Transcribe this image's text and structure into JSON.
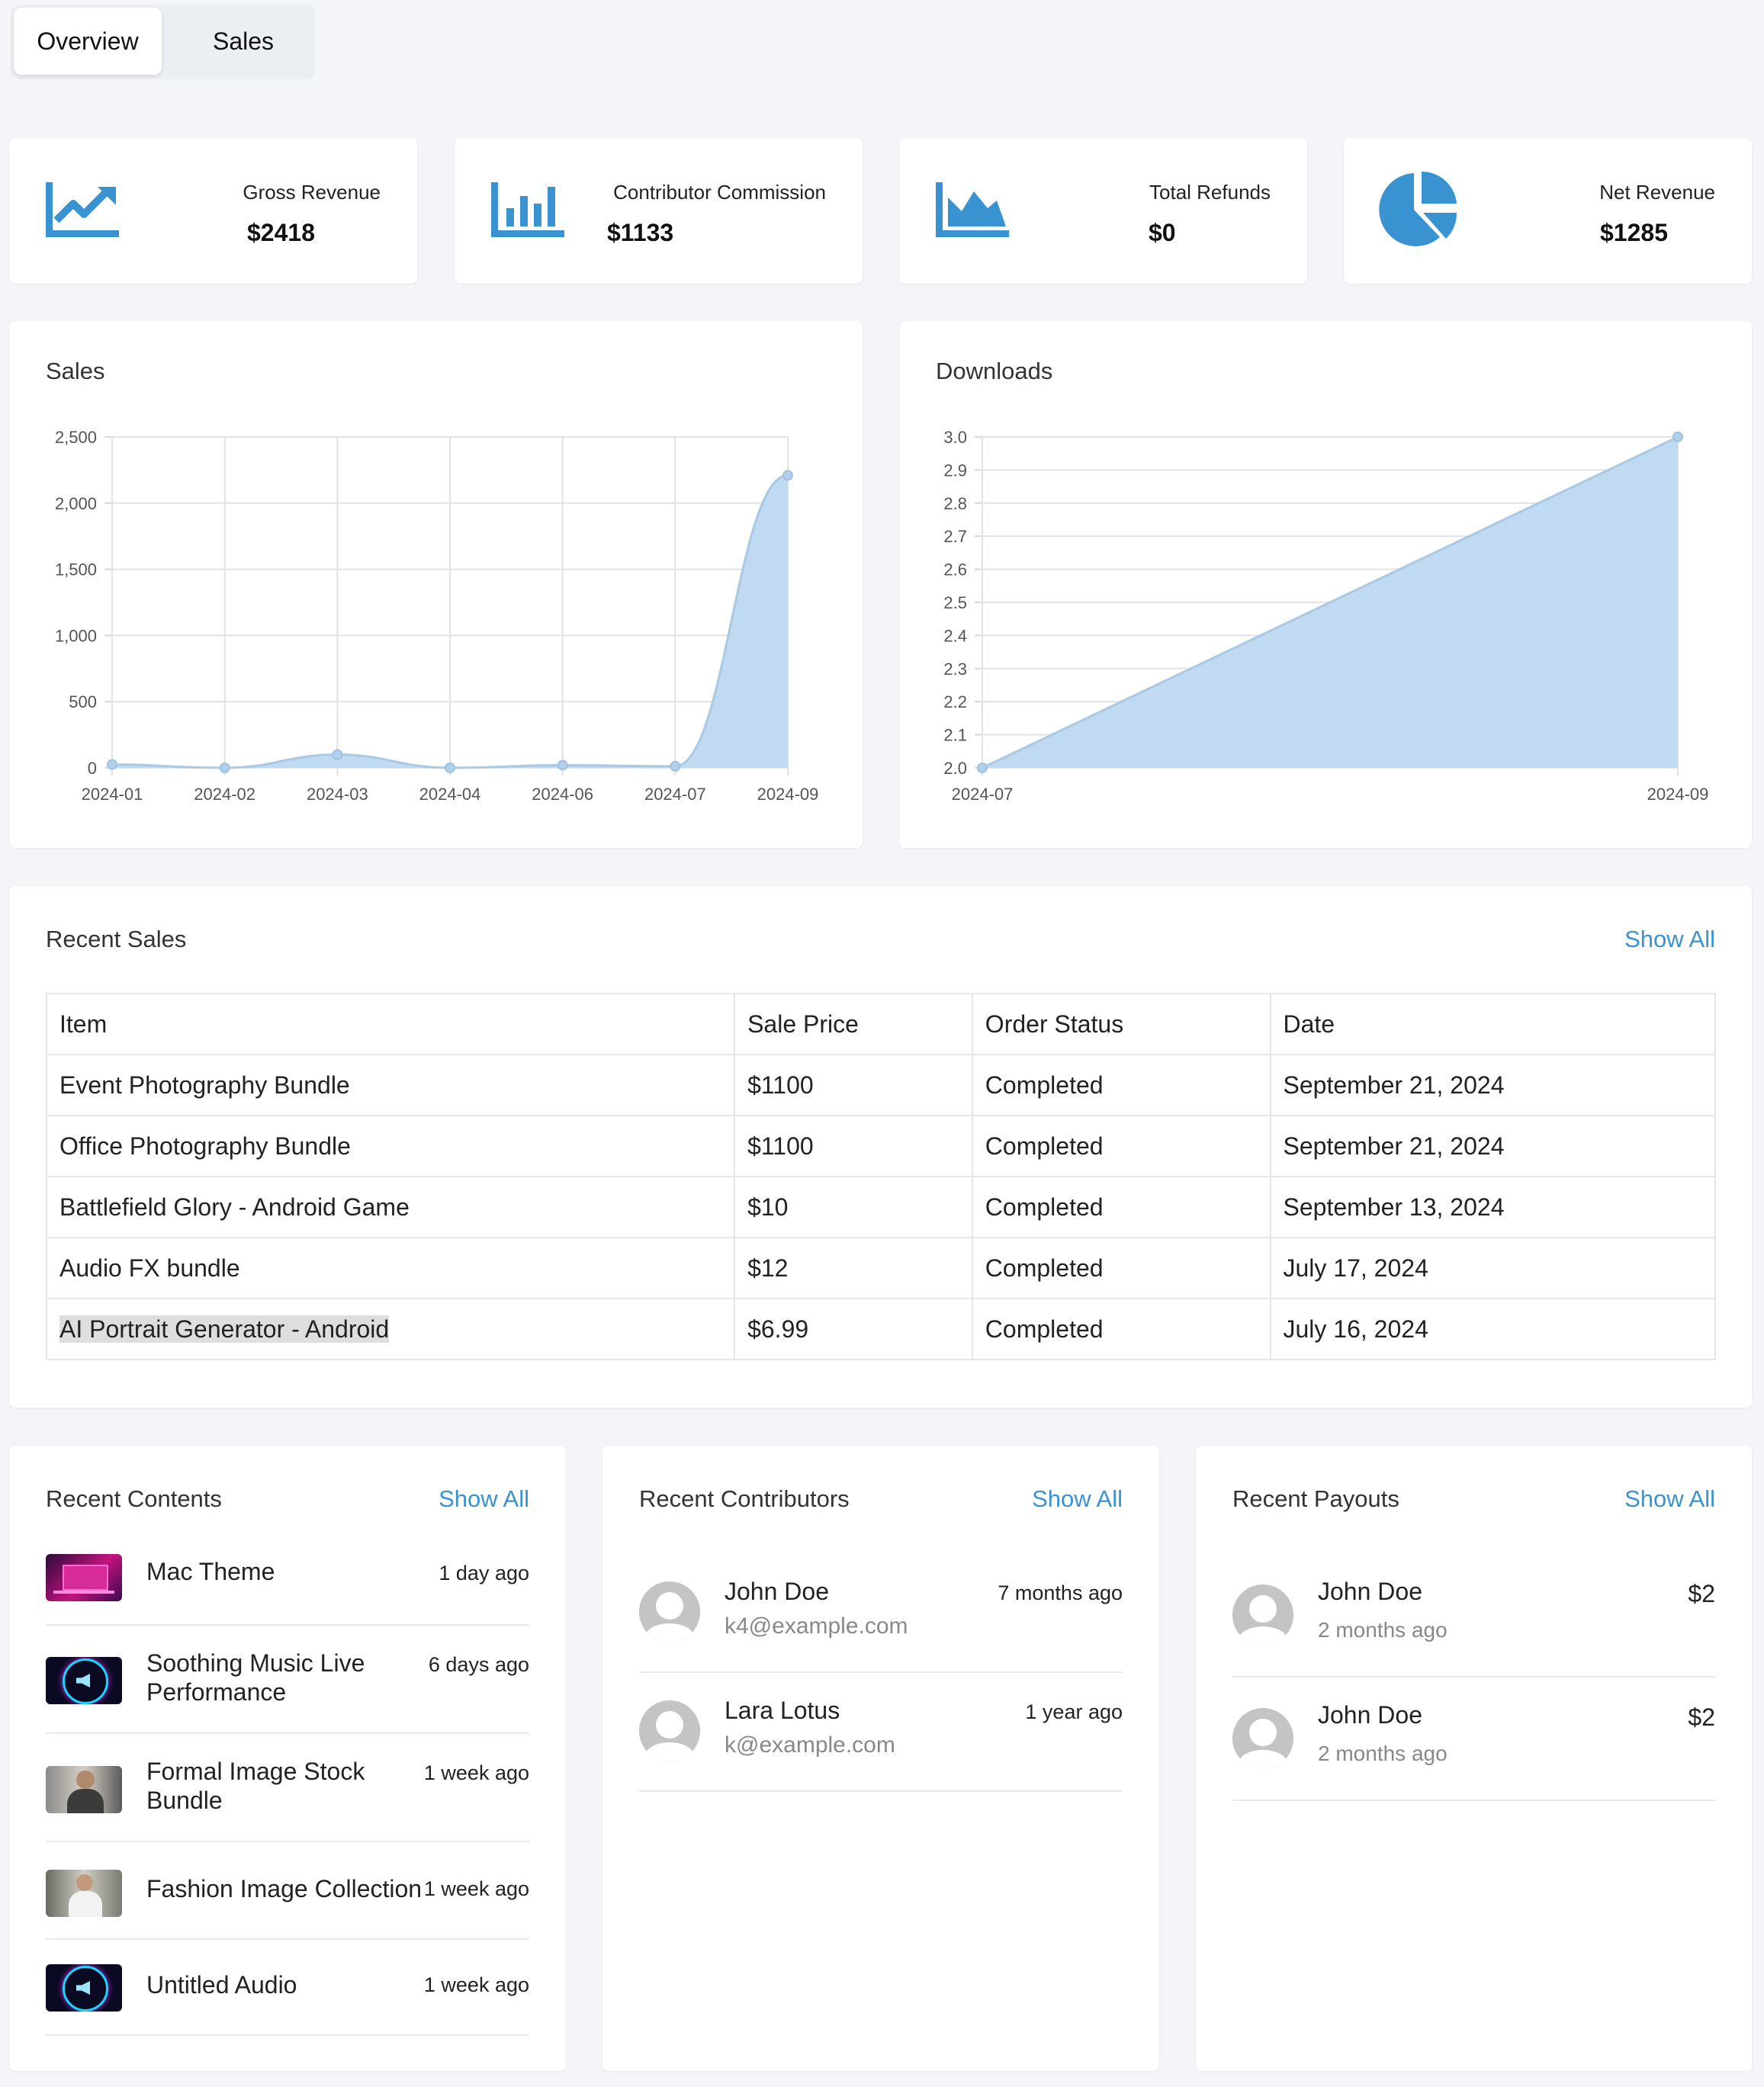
{
  "tabs": [
    {
      "label": "Overview",
      "active": true
    },
    {
      "label": "Sales",
      "active": false
    }
  ],
  "stats": [
    {
      "label": "Gross Revenue",
      "value": "$2418",
      "icon": "line-chart-icon"
    },
    {
      "label": "Contributor Commission",
      "value": "$1133",
      "icon": "bar-chart-icon"
    },
    {
      "label": "Total Refunds",
      "value": "$0",
      "icon": "area-chart-icon"
    },
    {
      "label": "Net Revenue",
      "value": "$1285",
      "icon": "pie-chart-icon"
    }
  ],
  "colors": {
    "accent": "#3a93d1",
    "chart_fill": "#bcd8f0",
    "chart_line": "#a9c9e4"
  },
  "charts": {
    "sales_title": "Sales",
    "downloads_title": "Downloads"
  },
  "chart_data": [
    {
      "type": "area",
      "title": "Sales",
      "x": [
        "2024-01",
        "2024-02",
        "2024-03",
        "2024-04",
        "2024-06",
        "2024-07",
        "2024-09"
      ],
      "series": [
        {
          "values": [
            25,
            0,
            100,
            0,
            20,
            12,
            2210
          ]
        }
      ],
      "ylim": [
        0,
        2500
      ],
      "yticks": [
        "0",
        "500",
        "1,000",
        "1,500",
        "2,000",
        "2,500"
      ],
      "grid": true
    },
    {
      "type": "area",
      "title": "Downloads",
      "x": [
        "2024-07",
        "2024-09"
      ],
      "series": [
        {
          "values": [
            2.0,
            3.0
          ]
        }
      ],
      "ylim": [
        2.0,
        3.0
      ],
      "yticks": [
        "2.0",
        "2.1",
        "2.2",
        "2.3",
        "2.4",
        "2.5",
        "2.6",
        "2.7",
        "2.8",
        "2.9",
        "3.0"
      ],
      "grid": true
    }
  ],
  "recent_sales": {
    "title": "Recent Sales",
    "show_all": "Show All",
    "columns": [
      "Item",
      "Sale Price",
      "Order Status",
      "Date"
    ],
    "rows": [
      [
        "Event Photography Bundle",
        "$1100",
        "Completed",
        "September 21, 2024"
      ],
      [
        "Office Photography Bundle",
        "$1100",
        "Completed",
        "September 21, 2024"
      ],
      [
        "Battlefield Glory - Android Game",
        "$10",
        "Completed",
        "September 13, 2024"
      ],
      [
        "Audio FX bundle",
        "$12",
        "Completed",
        "July 17, 2024"
      ],
      [
        "AI Portrait Generator - Android",
        "$6.99",
        "Completed",
        "July 16, 2024"
      ]
    ]
  },
  "recent_contents": {
    "title": "Recent Contents",
    "show_all": "Show All",
    "items": [
      {
        "name": "Mac Theme",
        "time": "1 day ago",
        "thumb": "desktop-thumb"
      },
      {
        "name": "Soothing Music Live Performance",
        "time": "6 days ago",
        "thumb": "audio-thumb"
      },
      {
        "name": "Formal Image Stock Bundle",
        "time": "1 week ago",
        "thumb": "person-thumb"
      },
      {
        "name": "Fashion Image Collection",
        "time": "1 week ago",
        "thumb": "person-thumb"
      },
      {
        "name": "Untitled Audio",
        "time": "1 week ago",
        "thumb": "audio-thumb"
      }
    ]
  },
  "recent_contributors": {
    "title": "Recent Contributors",
    "show_all": "Show All",
    "items": [
      {
        "name": "John Doe",
        "email": "k4@example.com",
        "time": "7 months ago"
      },
      {
        "name": "Lara Lotus",
        "email": "k@example.com",
        "time": "1 year ago"
      }
    ]
  },
  "recent_payouts": {
    "title": "Recent Payouts",
    "show_all": "Show All",
    "items": [
      {
        "name": "John Doe",
        "time": "2 months ago",
        "amount": "$2"
      },
      {
        "name": "John Doe",
        "time": "2 months ago",
        "amount": "$2"
      }
    ]
  }
}
